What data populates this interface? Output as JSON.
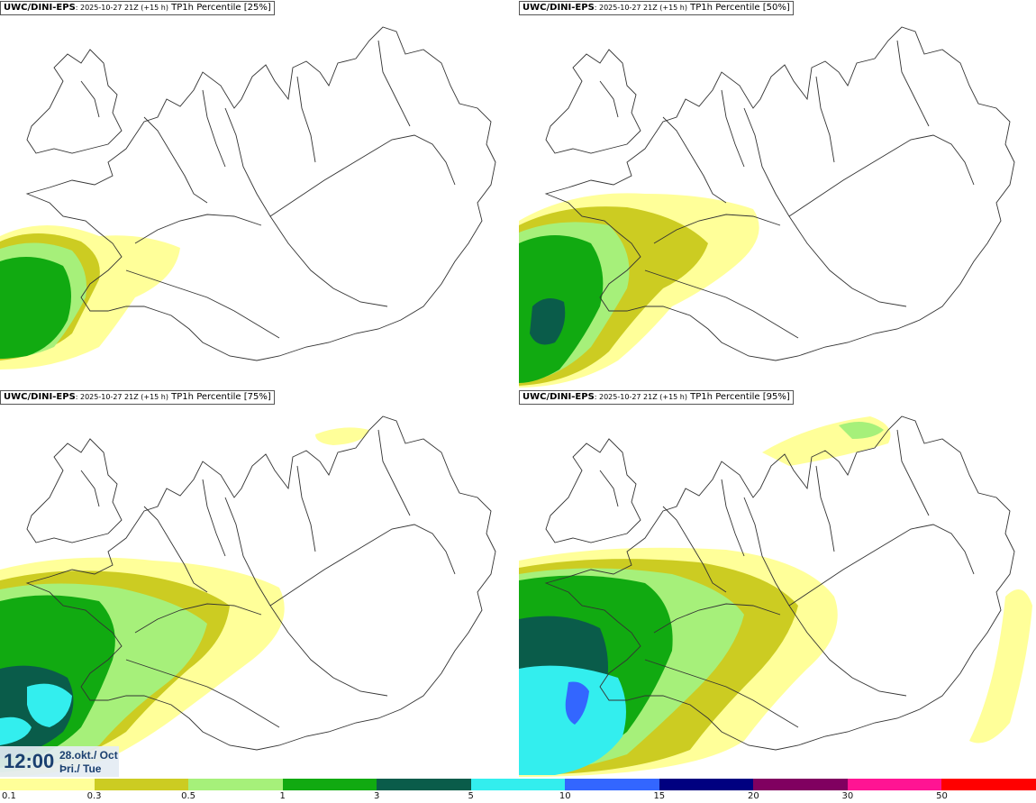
{
  "panels": [
    {
      "source": "UWC/DINI-EPS",
      "run": ": 2025-10-27 21Z (+15 h)",
      "field": "TP1h Percentile [25%]"
    },
    {
      "source": "UWC/DINI-EPS",
      "run": ": 2025-10-27 21Z (+15 h)",
      "field": "TP1h Percentile [50%]"
    },
    {
      "source": "UWC/DINI-EPS",
      "run": ": 2025-10-27 21Z (+15 h)",
      "field": "TP1h Percentile [75%]"
    },
    {
      "source": "UWC/DINI-EPS",
      "run": ": 2025-10-27 21Z (+15 h)",
      "field": "TP1h Percentile [95%]"
    }
  ],
  "valid_time": {
    "time": "12:00",
    "date": "28.okt./ Oct",
    "weekday": "Þri./ Tue"
  },
  "legend": {
    "labels": [
      "0.1",
      "0.3",
      "0.5",
      "1",
      "3",
      "5",
      "10",
      "15",
      "20",
      "30",
      "50"
    ],
    "colors": [
      "#ffff99",
      "#cccc22",
      "#a6f07a",
      "#11aa11",
      "#0a5c4a",
      "#33eeee",
      "#3366ff",
      "#000080",
      "#800060",
      "#ff1493",
      "#ff0000"
    ]
  },
  "colors": {
    "coast": "#222222",
    "outline": "#555555"
  }
}
